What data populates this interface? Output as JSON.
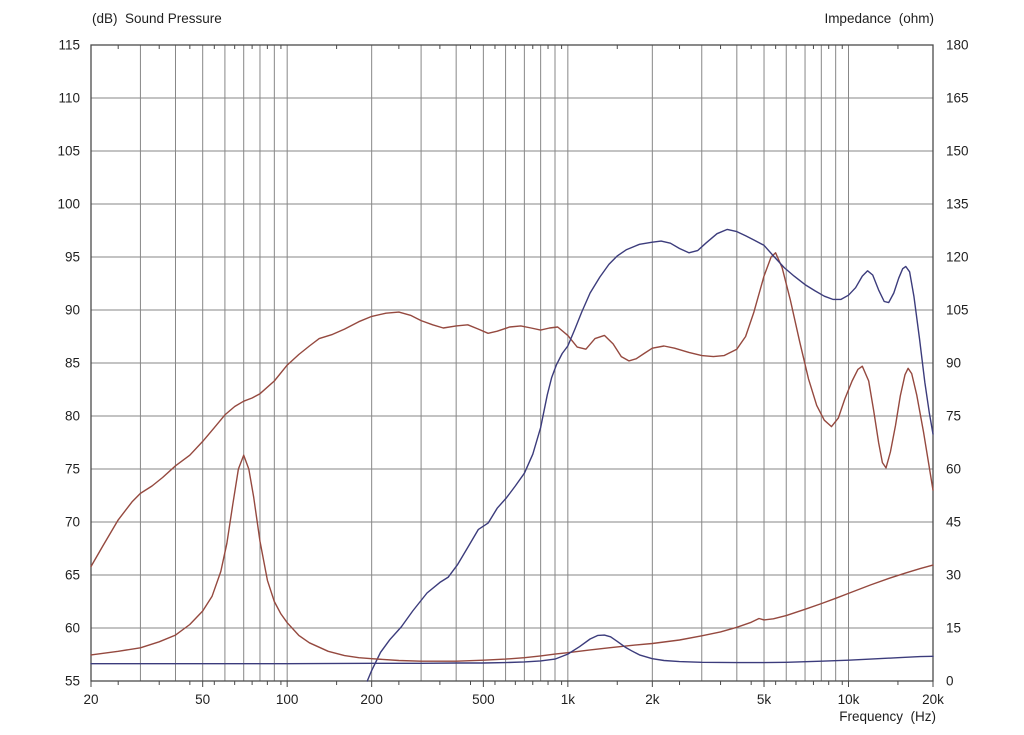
{
  "chart_data": {
    "type": "line",
    "grid": true,
    "grid_color": "#878787",
    "border_color": "#4a4a4a",
    "text_color": "#1f1f1f",
    "background_color": "#ffffff",
    "x_axis": {
      "scale": "log",
      "range": [
        20,
        20000
      ],
      "label": "Frequency  (Hz)",
      "major_ticks": [
        {
          "f": 20,
          "label": "20"
        },
        {
          "f": 50,
          "label": "50"
        },
        {
          "f": 100,
          "label": "100"
        },
        {
          "f": 200,
          "label": "200"
        },
        {
          "f": 500,
          "label": "500"
        },
        {
          "f": 1000,
          "label": "1k"
        },
        {
          "f": 2000,
          "label": "2k"
        },
        {
          "f": 5000,
          "label": "5k"
        },
        {
          "f": 10000,
          "label": "10k"
        },
        {
          "f": 20000,
          "label": "20k"
        }
      ],
      "minor_ticks": [
        25,
        35,
        45,
        55,
        65,
        75,
        85,
        95,
        150,
        250,
        350,
        450,
        550,
        650,
        750,
        850,
        950,
        1500,
        2500,
        3500,
        4500,
        5500,
        6500,
        7500,
        8500,
        9500,
        15000
      ],
      "gridlines": [
        30,
        40,
        50,
        60,
        70,
        80,
        90,
        100,
        200,
        300,
        400,
        500,
        600,
        700,
        800,
        900,
        1000,
        2000,
        3000,
        4000,
        5000,
        6000,
        7000,
        8000,
        9000,
        10000
      ]
    },
    "y_left": {
      "title": "(dB)  Sound Pressure",
      "unit": "dB",
      "range": [
        55,
        115
      ],
      "step": 5
    },
    "y_right": {
      "title": "Impedance  (ohm)",
      "unit": "ohm",
      "range": [
        0,
        180
      ],
      "step": 15
    },
    "series": [
      {
        "name": "sound-pressure-woofer",
        "axis": "left",
        "color": "#95493f",
        "points": [
          [
            20,
            65.8
          ],
          [
            22,
            67.7
          ],
          [
            25,
            70.2
          ],
          [
            28,
            71.9
          ],
          [
            30,
            72.7
          ],
          [
            33,
            73.4
          ],
          [
            36,
            74.2
          ],
          [
            40,
            75.3
          ],
          [
            45,
            76.3
          ],
          [
            50,
            77.6
          ],
          [
            55,
            78.9
          ],
          [
            60,
            80.1
          ],
          [
            65,
            80.9
          ],
          [
            70,
            81.4
          ],
          [
            75,
            81.7
          ],
          [
            80,
            82.1
          ],
          [
            90,
            83.3
          ],
          [
            100,
            84.8
          ],
          [
            110,
            85.8
          ],
          [
            120,
            86.6
          ],
          [
            130,
            87.3
          ],
          [
            145,
            87.7
          ],
          [
            160,
            88.2
          ],
          [
            180,
            88.9
          ],
          [
            200,
            89.4
          ],
          [
            225,
            89.7
          ],
          [
            250,
            89.8
          ],
          [
            275,
            89.5
          ],
          [
            300,
            89.0
          ],
          [
            330,
            88.6
          ],
          [
            360,
            88.3
          ],
          [
            400,
            88.5
          ],
          [
            440,
            88.6
          ],
          [
            480,
            88.2
          ],
          [
            520,
            87.8
          ],
          [
            560,
            88.0
          ],
          [
            620,
            88.4
          ],
          [
            680,
            88.5
          ],
          [
            740,
            88.3
          ],
          [
            800,
            88.1
          ],
          [
            860,
            88.3
          ],
          [
            920,
            88.4
          ],
          [
            1000,
            87.6
          ],
          [
            1080,
            86.5
          ],
          [
            1160,
            86.3
          ],
          [
            1250,
            87.3
          ],
          [
            1350,
            87.6
          ],
          [
            1450,
            86.8
          ],
          [
            1550,
            85.6
          ],
          [
            1650,
            85.2
          ],
          [
            1750,
            85.4
          ],
          [
            1870,
            85.9
          ],
          [
            2000,
            86.4
          ],
          [
            2200,
            86.6
          ],
          [
            2400,
            86.4
          ],
          [
            2700,
            86.0
          ],
          [
            3000,
            85.7
          ],
          [
            3300,
            85.6
          ],
          [
            3600,
            85.7
          ],
          [
            4000,
            86.3
          ],
          [
            4300,
            87.5
          ],
          [
            4600,
            89.8
          ],
          [
            5000,
            93.2
          ],
          [
            5300,
            95.0
          ],
          [
            5500,
            95.4
          ],
          [
            5800,
            94.0
          ],
          [
            6200,
            91.0
          ],
          [
            6700,
            87.0
          ],
          [
            7200,
            83.5
          ],
          [
            7700,
            81.0
          ],
          [
            8200,
            79.6
          ],
          [
            8700,
            79.0
          ],
          [
            9200,
            79.8
          ],
          [
            9700,
            81.6
          ],
          [
            10300,
            83.3
          ],
          [
            10800,
            84.4
          ],
          [
            11200,
            84.7
          ],
          [
            11800,
            83.3
          ],
          [
            12300,
            80.5
          ],
          [
            12800,
            77.5
          ],
          [
            13200,
            75.6
          ],
          [
            13600,
            75.1
          ],
          [
            14100,
            76.6
          ],
          [
            14700,
            79.1
          ],
          [
            15300,
            81.9
          ],
          [
            15900,
            83.9
          ],
          [
            16300,
            84.5
          ],
          [
            16800,
            84.0
          ],
          [
            17500,
            82.0
          ],
          [
            18500,
            78.5
          ],
          [
            19300,
            75.5
          ],
          [
            20000,
            73.0
          ]
        ]
      },
      {
        "name": "sound-pressure-horn",
        "axis": "left",
        "color": "#3c3c7c",
        "points": [
          [
            193,
            55.0
          ],
          [
            200,
            56.0
          ],
          [
            215,
            57.7
          ],
          [
            232,
            58.9
          ],
          [
            255,
            60.1
          ],
          [
            280,
            61.6
          ],
          [
            315,
            63.3
          ],
          [
            350,
            64.3
          ],
          [
            375,
            64.8
          ],
          [
            405,
            66.0
          ],
          [
            440,
            67.6
          ],
          [
            480,
            69.3
          ],
          [
            520,
            69.9
          ],
          [
            560,
            71.3
          ],
          [
            605,
            72.3
          ],
          [
            650,
            73.4
          ],
          [
            700,
            74.6
          ],
          [
            750,
            76.4
          ],
          [
            800,
            78.9
          ],
          [
            845,
            82.0
          ],
          [
            875,
            83.6
          ],
          [
            910,
            84.8
          ],
          [
            955,
            85.9
          ],
          [
            1000,
            86.6
          ],
          [
            1060,
            88.2
          ],
          [
            1120,
            89.8
          ],
          [
            1200,
            91.6
          ],
          [
            1300,
            93.1
          ],
          [
            1400,
            94.3
          ],
          [
            1500,
            95.1
          ],
          [
            1620,
            95.7
          ],
          [
            1800,
            96.2
          ],
          [
            2000,
            96.4
          ],
          [
            2150,
            96.5
          ],
          [
            2320,
            96.3
          ],
          [
            2500,
            95.8
          ],
          [
            2700,
            95.4
          ],
          [
            2900,
            95.6
          ],
          [
            3100,
            96.3
          ],
          [
            3400,
            97.2
          ],
          [
            3700,
            97.6
          ],
          [
            4000,
            97.4
          ],
          [
            4300,
            97.0
          ],
          [
            4600,
            96.6
          ],
          [
            5000,
            96.1
          ],
          [
            5400,
            95.1
          ],
          [
            5900,
            94.0
          ],
          [
            6400,
            93.2
          ],
          [
            7000,
            92.4
          ],
          [
            7600,
            91.8
          ],
          [
            8200,
            91.3
          ],
          [
            8800,
            91.0
          ],
          [
            9400,
            91.0
          ],
          [
            10000,
            91.4
          ],
          [
            10600,
            92.1
          ],
          [
            11200,
            93.2
          ],
          [
            11700,
            93.7
          ],
          [
            12200,
            93.3
          ],
          [
            12800,
            91.9
          ],
          [
            13400,
            90.8
          ],
          [
            13900,
            90.7
          ],
          [
            14500,
            91.6
          ],
          [
            15100,
            93.0
          ],
          [
            15600,
            93.9
          ],
          [
            16000,
            94.1
          ],
          [
            16500,
            93.6
          ],
          [
            17100,
            91.3
          ],
          [
            17900,
            87.3
          ],
          [
            18700,
            83.2
          ],
          [
            19400,
            80.3
          ],
          [
            20000,
            78.3
          ]
        ]
      },
      {
        "name": "impedance-woofer",
        "axis": "right",
        "color": "#95493f",
        "points": [
          [
            20,
            7.4
          ],
          [
            25,
            8.4
          ],
          [
            30,
            9.4
          ],
          [
            35,
            11.1
          ],
          [
            40,
            13.0
          ],
          [
            45,
            16.0
          ],
          [
            50,
            19.8
          ],
          [
            54,
            24.0
          ],
          [
            58,
            31.0
          ],
          [
            61,
            39.0
          ],
          [
            64,
            50.0
          ],
          [
            67,
            60.0
          ],
          [
            70,
            63.9
          ],
          [
            73,
            60.0
          ],
          [
            76,
            52.0
          ],
          [
            80,
            39.5
          ],
          [
            85,
            28.5
          ],
          [
            90,
            22.5
          ],
          [
            95,
            19.0
          ],
          [
            100,
            16.5
          ],
          [
            110,
            12.9
          ],
          [
            120,
            10.8
          ],
          [
            140,
            8.4
          ],
          [
            160,
            7.2
          ],
          [
            180,
            6.6
          ],
          [
            200,
            6.3
          ],
          [
            250,
            5.8
          ],
          [
            300,
            5.6
          ],
          [
            400,
            5.6
          ],
          [
            500,
            5.9
          ],
          [
            600,
            6.2
          ],
          [
            700,
            6.6
          ],
          [
            800,
            7.1
          ],
          [
            900,
            7.6
          ],
          [
            1000,
            8.0
          ],
          [
            1200,
            8.8
          ],
          [
            1400,
            9.4
          ],
          [
            1700,
            10.1
          ],
          [
            2000,
            10.6
          ],
          [
            2500,
            11.6
          ],
          [
            3000,
            12.8
          ],
          [
            3500,
            13.9
          ],
          [
            4000,
            15.2
          ],
          [
            4500,
            16.6
          ],
          [
            4800,
            17.7
          ],
          [
            5000,
            17.3
          ],
          [
            5400,
            17.6
          ],
          [
            6000,
            18.5
          ],
          [
            7000,
            20.3
          ],
          [
            8000,
            21.9
          ],
          [
            9000,
            23.4
          ],
          [
            10000,
            24.8
          ],
          [
            12000,
            27.2
          ],
          [
            14000,
            29.1
          ],
          [
            16000,
            30.6
          ],
          [
            18000,
            31.8
          ],
          [
            20000,
            32.8
          ]
        ]
      },
      {
        "name": "impedance-horn",
        "axis": "right",
        "color": "#3c3c7c",
        "points": [
          [
            20,
            4.9
          ],
          [
            50,
            4.9
          ],
          [
            100,
            4.9
          ],
          [
            200,
            5.0
          ],
          [
            300,
            5.0
          ],
          [
            400,
            5.1
          ],
          [
            500,
            5.1
          ],
          [
            600,
            5.2
          ],
          [
            700,
            5.4
          ],
          [
            800,
            5.7
          ],
          [
            900,
            6.2
          ],
          [
            1000,
            7.6
          ],
          [
            1100,
            9.7
          ],
          [
            1200,
            11.9
          ],
          [
            1280,
            12.9
          ],
          [
            1350,
            13.0
          ],
          [
            1420,
            12.5
          ],
          [
            1500,
            11.2
          ],
          [
            1600,
            9.6
          ],
          [
            1700,
            8.4
          ],
          [
            1800,
            7.4
          ],
          [
            2000,
            6.3
          ],
          [
            2200,
            5.8
          ],
          [
            2500,
            5.5
          ],
          [
            3000,
            5.3
          ],
          [
            4000,
            5.2
          ],
          [
            5000,
            5.2
          ],
          [
            6000,
            5.3
          ],
          [
            8000,
            5.6
          ],
          [
            10000,
            5.9
          ],
          [
            12000,
            6.2
          ],
          [
            15000,
            6.6
          ],
          [
            18000,
            6.9
          ],
          [
            20000,
            7.0
          ]
        ]
      }
    ]
  }
}
